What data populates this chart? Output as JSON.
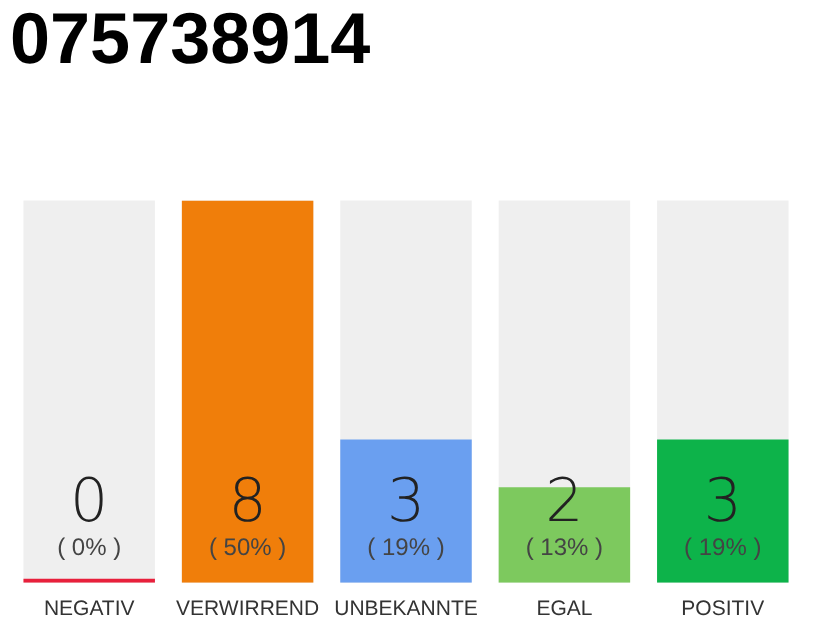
{
  "chart_data": {
    "type": "bar",
    "title": "075738914",
    "categories": [
      "NEGATIV",
      "VERWIRREND",
      "UNBEKANNTE",
      "EGAL",
      "POSITIV"
    ],
    "values": [
      0,
      8,
      3,
      2,
      3
    ],
    "colors": [
      "#e8203c",
      "#f07e0a",
      "#6a9ff0",
      "#7dc95e",
      "#0db34a"
    ],
    "ylim": [
      0,
      8
    ],
    "data_labels": true,
    "legend": false,
    "grid": false,
    "tick_labels": "x",
    "annotations": [
      "( 0% )",
      "( 50% )",
      "( 19% )",
      "( 13% )",
      "( 19% )"
    ]
  }
}
